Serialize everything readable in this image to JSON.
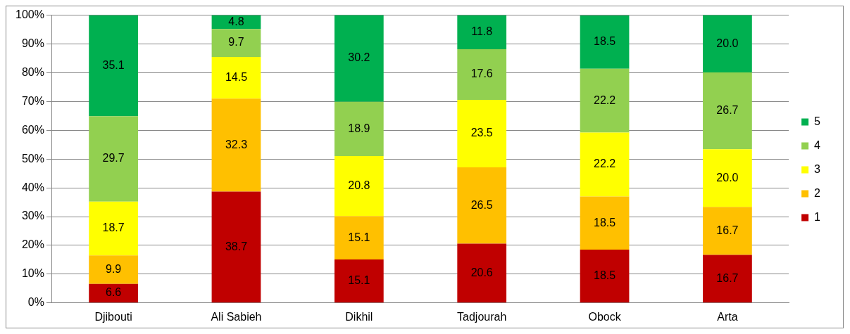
{
  "chart_data": {
    "type": "bar",
    "stacked": true,
    "categories": [
      "Djibouti",
      "Ali Sabieh",
      "Dikhil",
      "Tadjourah",
      "Obock",
      "Arta"
    ],
    "series": [
      {
        "name": "1",
        "color": "#c00000",
        "values": [
          6.6,
          38.7,
          15.1,
          20.6,
          18.5,
          16.7
        ],
        "value_labels": [
          "6.6",
          "38.7",
          "15.1",
          "20.6",
          "18.5",
          "16.7"
        ]
      },
      {
        "name": "2",
        "color": "#ffc000",
        "values": [
          9.9,
          32.3,
          15.1,
          26.5,
          18.5,
          16.7
        ],
        "value_labels": [
          "9.9",
          "32.3",
          "15.1",
          "26.5",
          "18.5",
          "16.7"
        ]
      },
      {
        "name": "3",
        "color": "#ffff00",
        "values": [
          18.7,
          14.5,
          20.8,
          23.5,
          22.2,
          20.0
        ],
        "value_labels": [
          "18.7",
          "14.5",
          "20.8",
          "23.5",
          "22.2",
          "20.0"
        ]
      },
      {
        "name": "4",
        "color": "#92d050",
        "values": [
          29.7,
          9.7,
          18.9,
          17.6,
          22.2,
          26.7
        ],
        "value_labels": [
          "29.7",
          "9.7",
          "18.9",
          "17.6",
          "22.2",
          "26.7"
        ]
      },
      {
        "name": "5",
        "color": "#00b050",
        "values": [
          35.1,
          4.8,
          30.2,
          11.8,
          18.5,
          20.0
        ],
        "value_labels": [
          "35.1",
          "4.8",
          "30.2",
          "11.8",
          "18.5",
          "20.0"
        ]
      }
    ],
    "ylim": [
      0,
      100
    ],
    "yticks": [
      {
        "value": 0,
        "label": "0%"
      },
      {
        "value": 10,
        "label": "10%"
      },
      {
        "value": 20,
        "label": "20%"
      },
      {
        "value": 30,
        "label": "30%"
      },
      {
        "value": 40,
        "label": "40%"
      },
      {
        "value": 50,
        "label": "50%"
      },
      {
        "value": 60,
        "label": "60%"
      },
      {
        "value": 70,
        "label": "70%"
      },
      {
        "value": 80,
        "label": "80%"
      },
      {
        "value": 90,
        "label": "90%"
      },
      {
        "value": 100,
        "label": "100%"
      }
    ],
    "grid": "y",
    "legend": "right"
  }
}
